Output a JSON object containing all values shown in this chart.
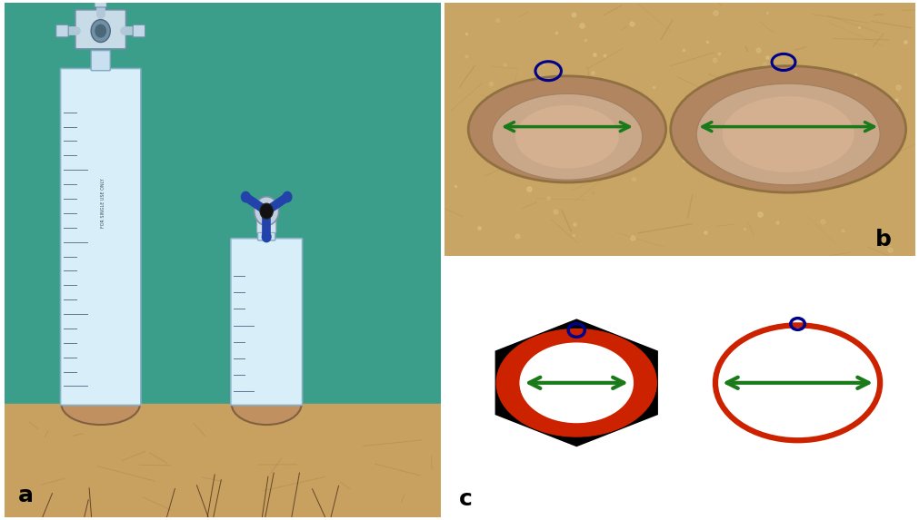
{
  "figure_width": 10.11,
  "figure_height": 5.73,
  "dpi": 100,
  "bg_color": "#ffffff",
  "border_color": "#000000",
  "panel_a": {
    "label": "a",
    "bg_color": "#3a9e8a",
    "skin_color": "#c8a060"
  },
  "panel_b": {
    "label": "b",
    "bg_color": "#c8a060",
    "arrow_color": "#1a6e1a",
    "circle_color": "#00008b"
  },
  "panel_c": {
    "label": "c",
    "bg_color": "#ffffff",
    "hex_color": "#000000",
    "ring_fill_color": "#cc2200",
    "inner_color": "#ffffff",
    "circle_outline_color": "#cc2200",
    "arrow_color": "#1a6e1a",
    "small_circle_color": "#00008b"
  },
  "label_fontsize": 18,
  "label_color": "#000000"
}
